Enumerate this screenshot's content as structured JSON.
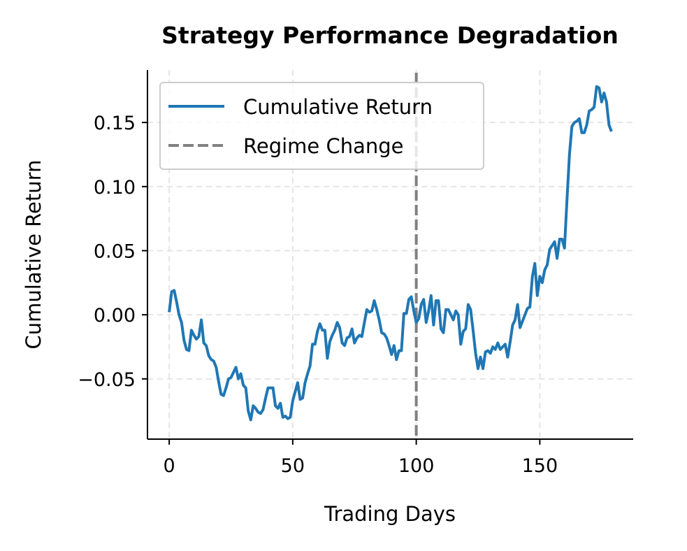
{
  "chart_data": {
    "type": "line",
    "title": "Strategy Performance Degradation",
    "xlabel": "Trading Days",
    "ylabel": "Cumulative Return",
    "xlim": [
      -8.8,
      187.8
    ],
    "ylim": [
      -0.097,
      0.191
    ],
    "xticks": [
      0,
      50,
      100,
      150
    ],
    "xtick_labels": [
      "0",
      "50",
      "100",
      "150"
    ],
    "yticks": [
      -0.05,
      0.0,
      0.05,
      0.1,
      0.15
    ],
    "ytick_labels": [
      "−0.05",
      "0.00",
      "0.05",
      "0.10",
      "0.15"
    ],
    "grid": true,
    "legend_placement": "upper-left",
    "series": [
      {
        "name": "Cumulative Return",
        "color": "#1f77b4",
        "x_start": 0,
        "values": [
          0.002,
          0.018,
          0.019,
          0.01,
          0.0,
          -0.006,
          -0.02,
          -0.027,
          -0.028,
          -0.012,
          -0.016,
          -0.019,
          -0.017,
          -0.004,
          -0.022,
          -0.024,
          -0.032,
          -0.035,
          -0.036,
          -0.041,
          -0.052,
          -0.062,
          -0.063,
          -0.057,
          -0.05,
          -0.049,
          -0.045,
          -0.041,
          -0.05,
          -0.046,
          -0.055,
          -0.057,
          -0.075,
          -0.082,
          -0.071,
          -0.073,
          -0.076,
          -0.077,
          -0.074,
          -0.065,
          -0.057,
          -0.057,
          -0.057,
          -0.071,
          -0.073,
          -0.069,
          -0.08,
          -0.079,
          -0.081,
          -0.08,
          -0.067,
          -0.06,
          -0.053,
          -0.066,
          -0.065,
          -0.053,
          -0.046,
          -0.04,
          -0.023,
          -0.023,
          -0.013,
          -0.007,
          -0.012,
          -0.012,
          -0.034,
          -0.021,
          -0.016,
          -0.012,
          -0.006,
          -0.01,
          -0.022,
          -0.024,
          -0.018,
          -0.017,
          -0.011,
          -0.022,
          -0.018,
          -0.016,
          -0.017,
          -0.006,
          0.004,
          0.002,
          0.003,
          0.011,
          0.004,
          -0.004,
          -0.014,
          -0.015,
          -0.018,
          -0.024,
          -0.031,
          -0.024,
          -0.035,
          -0.028,
          -0.028,
          0.001,
          0.001,
          0.012,
          0.014,
          0.003,
          -0.006,
          -0.003,
          0.008,
          0.012,
          -0.006,
          0.003,
          0.015,
          -0.008,
          0.011,
          0.011,
          -0.011,
          -0.014,
          0.004,
          0.004,
          0.0,
          -0.004,
          0.003,
          0.0,
          -0.023,
          -0.013,
          -0.011,
          0.008,
          0.004,
          -0.012,
          -0.03,
          -0.042,
          -0.033,
          -0.042,
          -0.029,
          -0.028,
          -0.03,
          -0.025,
          -0.027,
          -0.022,
          -0.027,
          -0.025,
          -0.023,
          -0.033,
          -0.021,
          -0.008,
          -0.004,
          0.008,
          -0.01,
          -0.005,
          0.0,
          0.005,
          0.006,
          0.03,
          0.04,
          0.015,
          0.03,
          0.025,
          0.035,
          0.039,
          0.051,
          0.054,
          0.057,
          0.044,
          0.059,
          0.059,
          0.052,
          0.09,
          0.125,
          0.147,
          0.15,
          0.151,
          0.153,
          0.142,
          0.142,
          0.148,
          0.159,
          0.16,
          0.162,
          0.178,
          0.177,
          0.166,
          0.173,
          0.166,
          0.148,
          0.143
        ]
      },
      {
        "name": "Regime Change",
        "type": "vline",
        "x": 100,
        "color": "#808080",
        "style": "dashed"
      }
    ]
  }
}
